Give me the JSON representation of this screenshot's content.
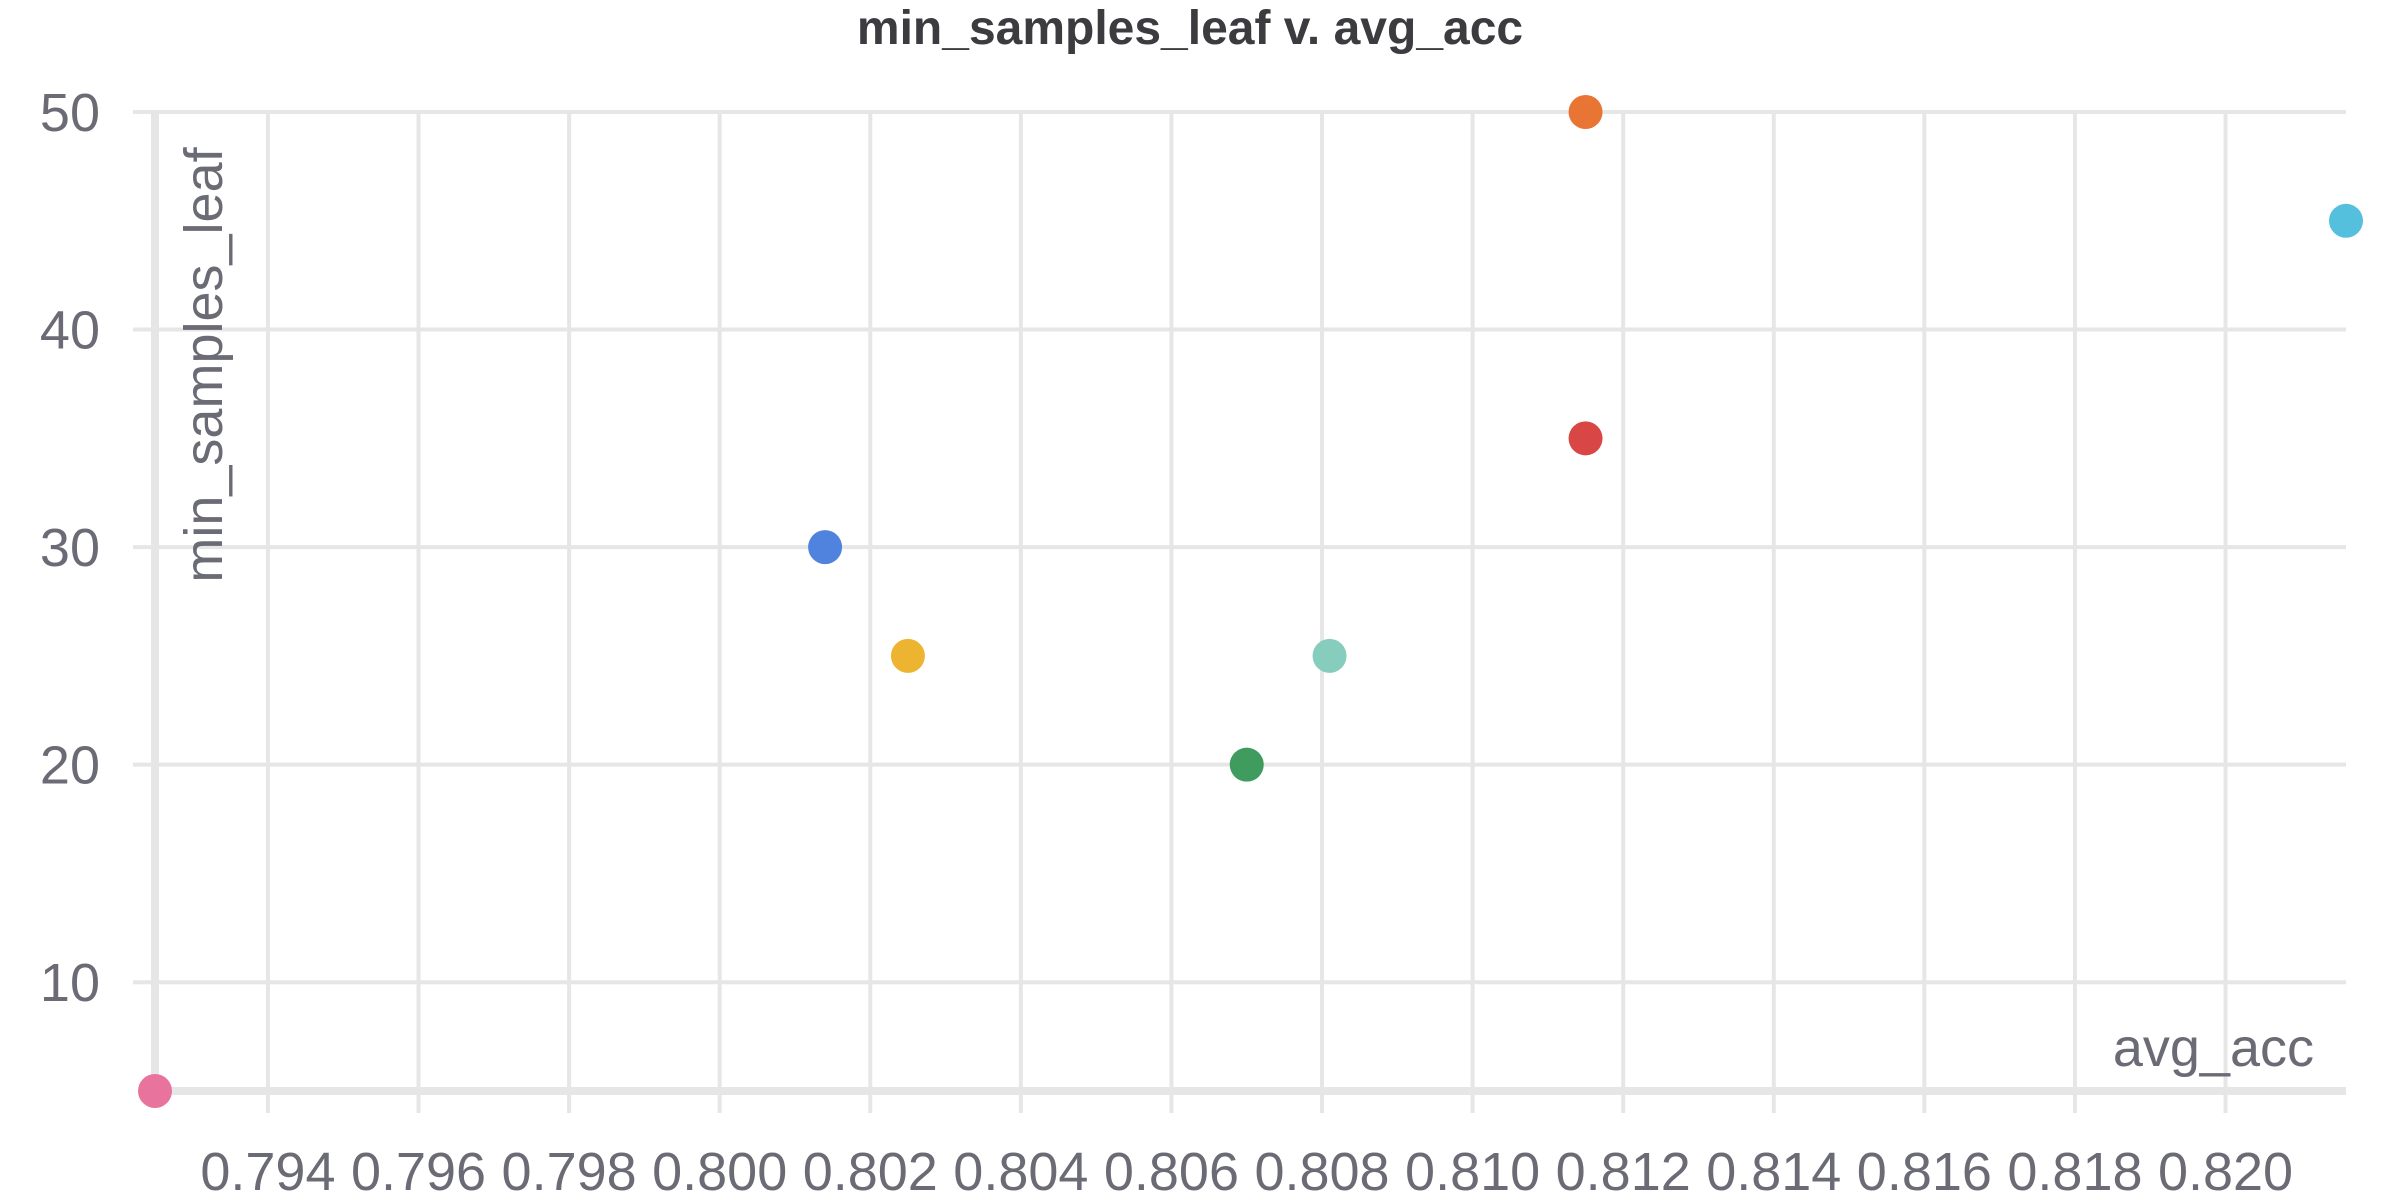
{
  "chart_data": {
    "type": "scatter",
    "title": "min_samples_leaf v. avg_acc",
    "xlabel": "avg_acc",
    "ylabel": "min_samples_leaf",
    "xlim": [
      0.7925,
      0.8216
    ],
    "ylim": [
      5,
      50
    ],
    "x_ticks": [
      0.794,
      0.796,
      0.798,
      0.8,
      0.802,
      0.804,
      0.806,
      0.808,
      0.81,
      0.812,
      0.814,
      0.816,
      0.818,
      0.82
    ],
    "x_tick_labels": [
      "0.794",
      "0.796",
      "0.798",
      "0.800",
      "0.802",
      "0.804",
      "0.806",
      "0.808",
      "0.810",
      "0.812",
      "0.814",
      "0.816",
      "0.818",
      "0.820"
    ],
    "y_ticks": [
      10,
      20,
      30,
      40,
      50
    ],
    "y_tick_labels": [
      "10",
      "20",
      "30",
      "40",
      "50"
    ],
    "grid": true,
    "legend": "none",
    "points": [
      {
        "x": 0.7925,
        "y": 5,
        "color": "#e8739c"
      },
      {
        "x": 0.8014,
        "y": 30,
        "color": "#5083de"
      },
      {
        "x": 0.8025,
        "y": 25,
        "color": "#ecb431"
      },
      {
        "x": 0.807,
        "y": 20,
        "color": "#3f9c5e"
      },
      {
        "x": 0.8081,
        "y": 25,
        "color": "#86cdbd"
      },
      {
        "x": 0.8115,
        "y": 35,
        "color": "#d94646"
      },
      {
        "x": 0.8115,
        "y": 50,
        "color": "#e87534"
      },
      {
        "x": 0.8216,
        "y": 45,
        "color": "#55c0de"
      }
    ]
  }
}
